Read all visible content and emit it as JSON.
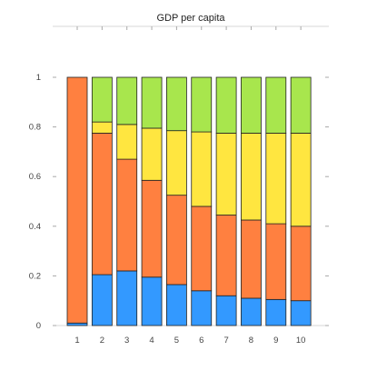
{
  "chart_data": {
    "type": "bar",
    "stacked": true,
    "title": "GDP per capita",
    "xlabel": "",
    "ylabel": "",
    "categories": [
      "1",
      "2",
      "3",
      "4",
      "5",
      "6",
      "7",
      "8",
      "9",
      "10"
    ],
    "ylim": [
      0,
      1
    ],
    "yticks": [
      "0",
      "0.2",
      "0.4",
      "0.6",
      "0.8",
      "1"
    ],
    "series": [
      {
        "color": "#3399ff",
        "values": [
          0.01,
          0.205,
          0.22,
          0.195,
          0.165,
          0.14,
          0.12,
          0.11,
          0.105,
          0.1
        ]
      },
      {
        "color": "#ff8040",
        "values": [
          0.99,
          0.57,
          0.45,
          0.39,
          0.36,
          0.34,
          0.325,
          0.315,
          0.305,
          0.3
        ]
      },
      {
        "color": "#ffe640",
        "values": [
          0.0,
          0.045,
          0.14,
          0.21,
          0.26,
          0.3,
          0.33,
          0.35,
          0.365,
          0.375
        ]
      },
      {
        "color": "#a8e64d",
        "values": [
          0.0,
          0.18,
          0.19,
          0.205,
          0.215,
          0.22,
          0.225,
          0.225,
          0.225,
          0.225
        ]
      }
    ],
    "grid": false,
    "legend": "none"
  }
}
